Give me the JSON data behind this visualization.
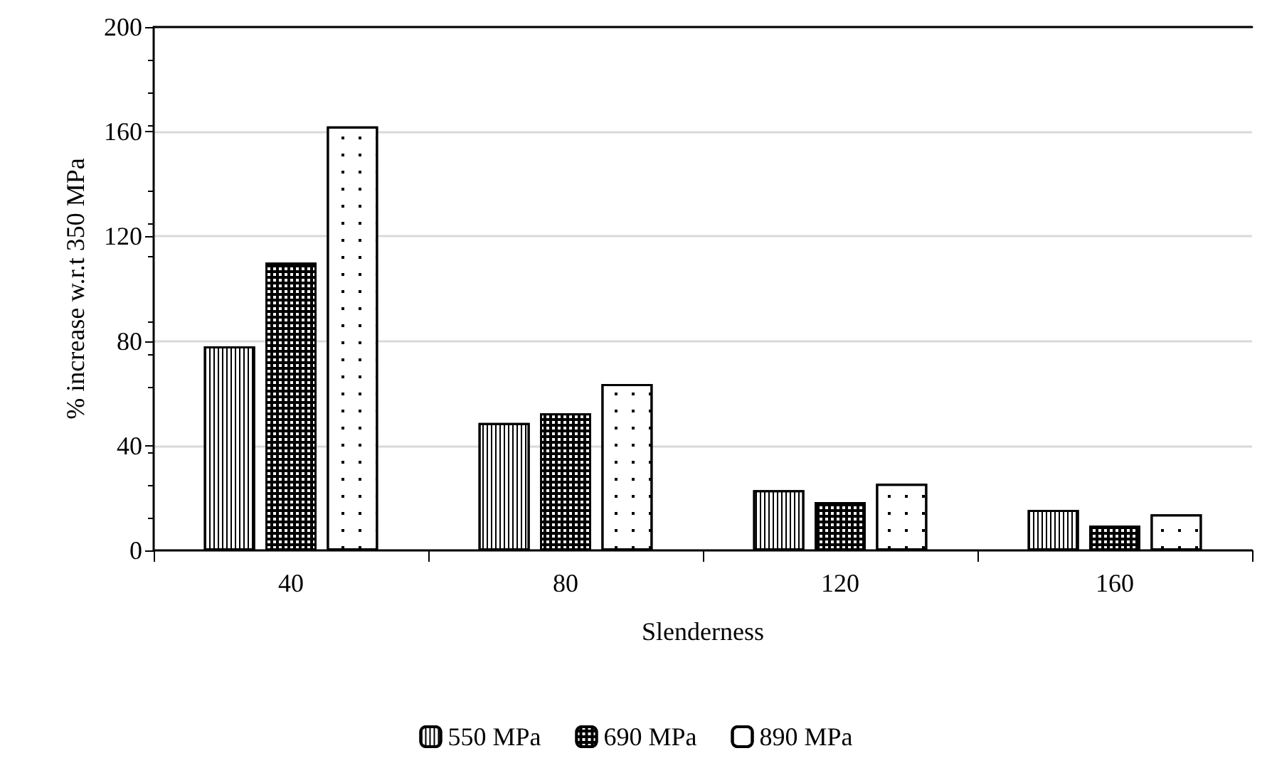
{
  "chart_data": {
    "type": "bar",
    "xlabel": "Slenderness",
    "ylabel": "% increase w.r.t 350 MPa",
    "categories": [
      "40",
      "80",
      "120",
      "160"
    ],
    "series": [
      {
        "name": "550 MPa",
        "color": "#ffffff",
        "values": [
          78,
          48.7,
          23,
          15.5
        ]
      },
      {
        "name": "690 MPa",
        "color": "#000000",
        "values": [
          110,
          52.4,
          18.5,
          9.5
        ]
      },
      {
        "name": "890 MPa",
        "color": "#ffffff",
        "values": [
          162,
          63.6,
          25.5,
          13.8
        ]
      }
    ],
    "ylim": [
      0,
      200
    ],
    "yticks": [
      0,
      40,
      80,
      120,
      160,
      200
    ],
    "grid": "y",
    "legend": "bottom"
  }
}
